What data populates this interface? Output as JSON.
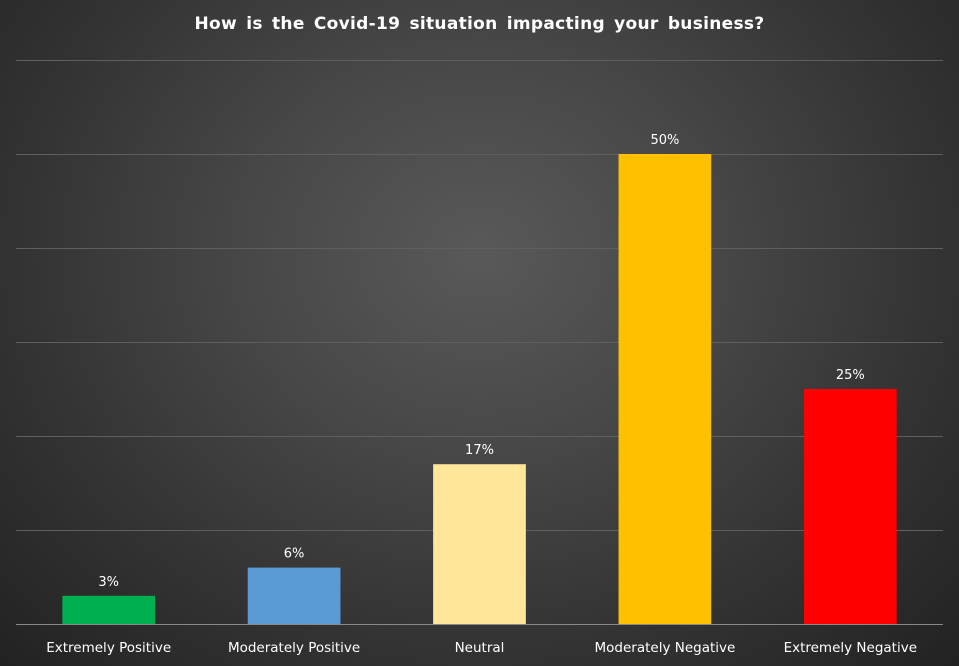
{
  "chart_data": {
    "type": "bar",
    "title": "How is the Covid-19  situation  impacting  your  business?",
    "xlabel": "",
    "ylabel": "",
    "categories": [
      "Extremely Positive",
      "Moderately Positive",
      "Neutral",
      "Moderately Negative",
      "Extremely Negative"
    ],
    "values": [
      3,
      6,
      17,
      50,
      25
    ],
    "value_labels": [
      "3%",
      "6%",
      "17%",
      "50%",
      "25%"
    ],
    "colors": [
      "#00B050",
      "#5B9BD5",
      "#FFE699",
      "#FFC000",
      "#FF0000"
    ],
    "ylim": [
      0,
      60
    ],
    "y_grid_step": 10,
    "grid": true,
    "y_axis_visible": false,
    "legend": "none",
    "background": "#3a3a3a"
  }
}
